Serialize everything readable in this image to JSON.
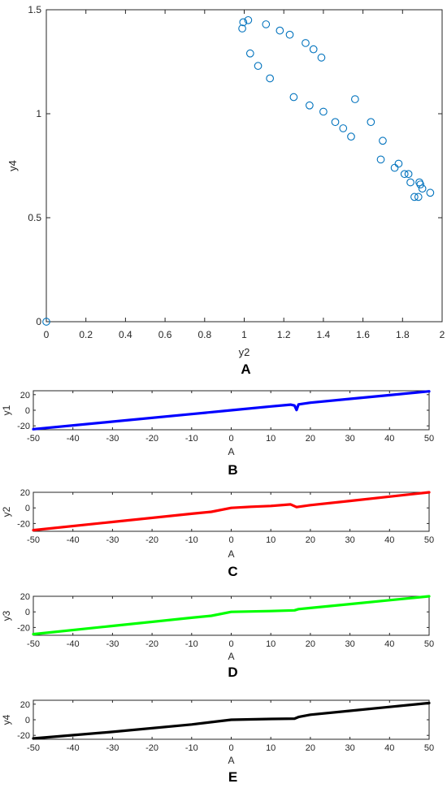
{
  "chart_data": [
    {
      "panel": "A",
      "type": "scatter",
      "xlabel": "y2",
      "ylabel": "y4",
      "xlim": [
        0,
        2
      ],
      "ylim": [
        0,
        1.5
      ],
      "xticks": [
        "0",
        "0.2",
        "0.4",
        "0.6",
        "0.8",
        "1",
        "1.2",
        "1.4",
        "1.6",
        "1.8",
        "2"
      ],
      "yticks": [
        "0",
        "0.5",
        "1",
        "1.5"
      ],
      "marker": "circle-open",
      "color": "#0072BD",
      "points": [
        [
          0.0,
          0.0
        ],
        [
          0.99,
          1.41
        ],
        [
          0.995,
          1.44
        ],
        [
          1.02,
          1.45
        ],
        [
          1.03,
          1.29
        ],
        [
          1.07,
          1.23
        ],
        [
          1.11,
          1.43
        ],
        [
          1.13,
          1.17
        ],
        [
          1.18,
          1.4
        ],
        [
          1.23,
          1.38
        ],
        [
          1.25,
          1.08
        ],
        [
          1.31,
          1.34
        ],
        [
          1.33,
          1.04
        ],
        [
          1.35,
          1.31
        ],
        [
          1.39,
          1.27
        ],
        [
          1.4,
          1.01
        ],
        [
          1.46,
          0.96
        ],
        [
          1.5,
          0.93
        ],
        [
          1.54,
          0.89
        ],
        [
          1.56,
          1.07
        ],
        [
          1.64,
          0.96
        ],
        [
          1.69,
          0.78
        ],
        [
          1.7,
          0.87
        ],
        [
          1.76,
          0.74
        ],
        [
          1.78,
          0.76
        ],
        [
          1.81,
          0.71
        ],
        [
          1.83,
          0.71
        ],
        [
          1.84,
          0.67
        ],
        [
          1.86,
          0.6
        ],
        [
          1.88,
          0.6
        ],
        [
          1.885,
          0.67
        ],
        [
          1.89,
          0.66
        ],
        [
          1.9,
          0.64
        ],
        [
          1.94,
          0.62
        ]
      ]
    },
    {
      "panel": "B",
      "type": "line",
      "xlabel": "A",
      "ylabel": "y1",
      "xlim": [
        -50,
        50
      ],
      "ylim": [
        -25,
        25
      ],
      "xticks": [
        "-50",
        "-40",
        "-30",
        "-20",
        "-10",
        "0",
        "10",
        "20",
        "30",
        "40",
        "50"
      ],
      "yticks": [
        "-20",
        "0",
        "20"
      ],
      "color": "#0000FF",
      "x": [
        -50,
        -30,
        -10,
        0,
        10,
        15,
        16,
        16.5,
        17,
        20,
        30,
        40,
        50
      ],
      "y": [
        -24.3,
        -14.6,
        -4.9,
        0,
        4.9,
        7.2,
        6.0,
        0.3,
        7.5,
        9.7,
        14.6,
        19.4,
        24.3
      ]
    },
    {
      "panel": "C",
      "type": "line",
      "xlabel": "A",
      "ylabel": "y2",
      "xlim": [
        -50,
        50
      ],
      "ylim": [
        -30,
        20
      ],
      "xticks": [
        "-50",
        "-40",
        "-30",
        "-20",
        "-10",
        "0",
        "10",
        "20",
        "30",
        "40",
        "50"
      ],
      "yticks": [
        "-20",
        "0",
        "20"
      ],
      "color": "#FF0000",
      "x": [
        -50,
        -30,
        -10,
        -5,
        0,
        5,
        10,
        15,
        16.5,
        20,
        30,
        40,
        50
      ],
      "y": [
        -28.5,
        -18.0,
        -7.5,
        -5.0,
        0,
        1.5,
        2.5,
        4.5,
        1.0,
        3.5,
        9.0,
        14.5,
        20.0
      ]
    },
    {
      "panel": "D",
      "type": "line",
      "xlabel": "A",
      "ylabel": "y3",
      "xlim": [
        -50,
        50
      ],
      "ylim": [
        -30,
        20
      ],
      "xticks": [
        "-50",
        "-40",
        "-30",
        "-20",
        "-10",
        "0",
        "10",
        "20",
        "30",
        "40",
        "50"
      ],
      "yticks": [
        "-20",
        "0",
        "20"
      ],
      "color": "#00FF00",
      "x": [
        -50,
        -30,
        -10,
        -5,
        0,
        5,
        10,
        16,
        17,
        20,
        30,
        40,
        50
      ],
      "y": [
        -28.5,
        -18.0,
        -7.5,
        -5.0,
        0,
        0.5,
        1.0,
        2.0,
        3.5,
        5.0,
        10.0,
        15.0,
        20.0
      ]
    },
    {
      "panel": "E",
      "type": "line",
      "xlabel": "A",
      "ylabel": "y4",
      "xlim": [
        -50,
        50
      ],
      "ylim": [
        -25,
        25
      ],
      "xticks": [
        "-50",
        "-40",
        "-30",
        "-20",
        "-10",
        "0",
        "10",
        "20",
        "30",
        "40",
        "50"
      ],
      "yticks": [
        "-20",
        "0",
        "20"
      ],
      "color": "#000000",
      "x": [
        -50,
        -30,
        -10,
        -5,
        0,
        5,
        10,
        16,
        17,
        20,
        30,
        40,
        50
      ],
      "y": [
        -24.0,
        -15.5,
        -6.0,
        -3.0,
        0,
        0.5,
        1.0,
        1.5,
        3.5,
        6.5,
        11.5,
        16.5,
        21.5
      ]
    }
  ]
}
